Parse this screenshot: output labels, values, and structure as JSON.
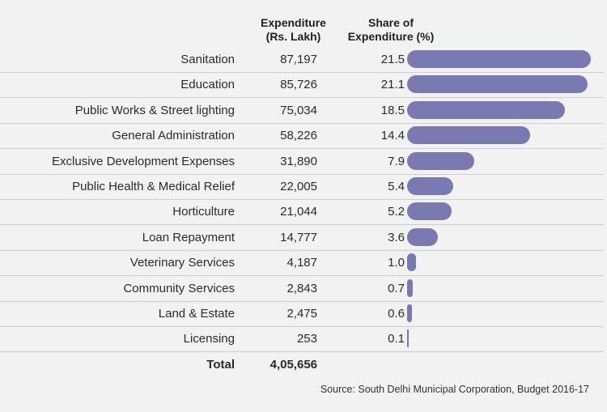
{
  "header": {
    "expenditure_line1": "Expenditure",
    "expenditure_line2": "(Rs. Lakh)",
    "share_line1": "Share of",
    "share_line2": "Expenditure (%)"
  },
  "chart_data": {
    "type": "bar",
    "categories": [
      "Sanitation",
      "Education",
      "Public Works & Street lighting",
      "General Administration",
      "Exclusive Development Expenses",
      "Public Health & Medical Relief",
      "Horticulture",
      "Loan Repayment",
      "Veterinary Services",
      "Community Services",
      "Land & Estate",
      "Licensing"
    ],
    "expenditure": [
      "87,197",
      "85,726",
      "75,034",
      "58,226",
      "31,890",
      "22,005",
      "21,044",
      "14,777",
      "4,187",
      "2,843",
      "2,475",
      "253"
    ],
    "share_labels": [
      "21.5",
      "21.1",
      "18.5",
      "14.4",
      "7.9",
      "5.4",
      "5.2",
      "3.6",
      "1.0",
      "0.7",
      "0.6",
      "0.1"
    ],
    "values": [
      21.5,
      21.1,
      18.5,
      14.4,
      7.9,
      5.4,
      5.2,
      3.6,
      1.0,
      0.7,
      0.6,
      0.1
    ],
    "bar_color": "#7b79b2",
    "total_label": "Total",
    "total_value": "4,05,656"
  },
  "source": "Source: South Delhi Municipal Corporation, Budget 2016-17"
}
